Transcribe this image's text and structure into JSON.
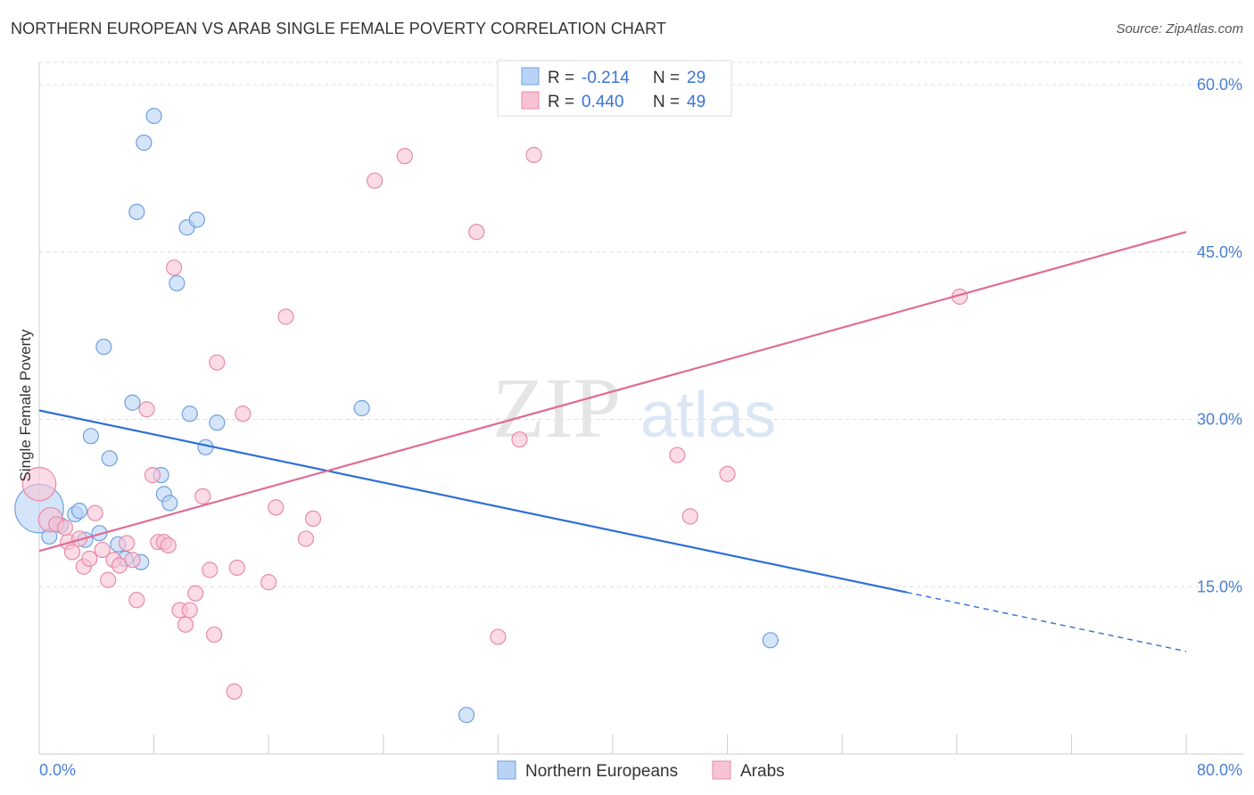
{
  "title": "NORTHERN EUROPEAN VS ARAB SINGLE FEMALE POVERTY CORRELATION CHART",
  "source": "Source: ZipAtlas.com",
  "watermark": {
    "zip": "ZIP",
    "atlas": "atlas"
  },
  "colors": {
    "blue_fill": "#b9d3f5",
    "blue_stroke": "#6f9fe0",
    "blue_line": "#2f6fd6",
    "pink_fill": "#f8c3d4",
    "pink_stroke": "#e88aa8",
    "pink_line": "#e06c95",
    "grid": "#dddddd",
    "tick_text": "#4a7fd4"
  },
  "legend_top": [
    {
      "label_r": "R = ",
      "r_value": "-0.214",
      "label_n": "N = ",
      "n_value": "29"
    },
    {
      "label_r": "R = ",
      "r_value": "0.440",
      "label_n": "N = ",
      "n_value": "49"
    }
  ],
  "chart_data": {
    "type": "scatter",
    "title": "NORTHERN EUROPEAN VS ARAB SINGLE FEMALE POVERTY CORRELATION CHART",
    "xlabel": "",
    "ylabel": "Single Female Poverty",
    "xlim": [
      0,
      80
    ],
    "ylim": [
      0,
      62
    ],
    "x_tick_labels": [
      "0.0%",
      "80.0%"
    ],
    "y_ticks": [
      15,
      30,
      45,
      60
    ],
    "y_tick_labels": [
      "15.0%",
      "30.0%",
      "45.0%",
      "60.0%"
    ],
    "grid": true,
    "legend_position": "bottom-center",
    "series": [
      {
        "name": "Northern Europeans",
        "r": -0.214,
        "n": 29,
        "trend": {
          "x0": 0,
          "y0": 30.8,
          "x1": 60.5,
          "y1": 14.5,
          "x_dash_end": 80,
          "y_dash_end": 9.2
        },
        "points": [
          [
            0.0,
            22.0,
            3.2
          ],
          [
            0.7,
            19.5,
            1
          ],
          [
            1.5,
            20.5,
            1
          ],
          [
            2.5,
            21.5,
            1
          ],
          [
            2.8,
            21.8,
            1
          ],
          [
            3.2,
            19.2,
            1
          ],
          [
            3.6,
            28.5,
            1
          ],
          [
            4.2,
            19.8,
            1
          ],
          [
            4.5,
            36.5,
            1
          ],
          [
            4.9,
            26.5,
            1
          ],
          [
            5.5,
            18.8,
            1
          ],
          [
            6.0,
            17.5,
            1
          ],
          [
            6.5,
            31.5,
            1
          ],
          [
            6.8,
            48.6,
            1
          ],
          [
            7.3,
            54.8,
            1
          ],
          [
            8.0,
            57.2,
            1
          ],
          [
            8.5,
            25.0,
            1
          ],
          [
            8.7,
            23.3,
            1
          ],
          [
            9.1,
            22.5,
            1
          ],
          [
            9.6,
            42.2,
            1
          ],
          [
            10.3,
            47.2,
            1
          ],
          [
            10.5,
            30.5,
            1
          ],
          [
            11.0,
            47.9,
            1
          ],
          [
            11.6,
            27.5,
            1
          ],
          [
            12.4,
            29.7,
            1
          ],
          [
            22.5,
            31.0,
            1
          ],
          [
            29.8,
            3.5,
            1
          ],
          [
            51.0,
            10.2,
            1
          ],
          [
            7.1,
            17.2,
            1
          ]
        ]
      },
      {
        "name": "Arabs",
        "r": 0.44,
        "n": 49,
        "trend": {
          "x0": 0,
          "y0": 18.2,
          "x1": 80,
          "y1": 46.8
        },
        "points": [
          [
            0.0,
            24.2,
            2.2
          ],
          [
            0.8,
            21.0,
            1.6
          ],
          [
            1.2,
            20.6,
            1
          ],
          [
            1.8,
            20.3,
            1
          ],
          [
            2.0,
            19.0,
            1
          ],
          [
            2.3,
            18.1,
            1
          ],
          [
            2.8,
            19.3,
            1
          ],
          [
            3.1,
            16.8,
            1
          ],
          [
            3.5,
            17.5,
            1
          ],
          [
            3.9,
            21.6,
            1
          ],
          [
            4.4,
            18.3,
            1
          ],
          [
            4.8,
            15.6,
            1
          ],
          [
            5.2,
            17.4,
            1
          ],
          [
            5.6,
            16.9,
            1
          ],
          [
            6.1,
            18.9,
            1
          ],
          [
            6.5,
            17.4,
            1
          ],
          [
            6.8,
            13.8,
            1
          ],
          [
            7.5,
            30.9,
            1
          ],
          [
            7.9,
            25.0,
            1
          ],
          [
            8.3,
            19.0,
            1
          ],
          [
            8.7,
            19.0,
            1
          ],
          [
            9.0,
            18.7,
            1
          ],
          [
            9.4,
            43.6,
            1
          ],
          [
            9.8,
            12.9,
            1
          ],
          [
            10.2,
            11.6,
            1
          ],
          [
            10.5,
            12.9,
            1
          ],
          [
            10.9,
            14.4,
            1
          ],
          [
            11.4,
            23.1,
            1
          ],
          [
            11.9,
            16.5,
            1
          ],
          [
            12.4,
            35.1,
            1
          ],
          [
            12.2,
            10.7,
            1
          ],
          [
            13.6,
            5.6,
            1
          ],
          [
            13.8,
            16.7,
            1
          ],
          [
            14.2,
            30.5,
            1
          ],
          [
            16.0,
            15.4,
            1
          ],
          [
            16.5,
            22.1,
            1
          ],
          [
            17.2,
            39.2,
            1
          ],
          [
            18.6,
            19.3,
            1
          ],
          [
            19.1,
            21.1,
            1
          ],
          [
            23.4,
            51.4,
            1
          ],
          [
            25.5,
            53.6,
            1
          ],
          [
            30.5,
            46.8,
            1
          ],
          [
            32.0,
            10.5,
            1
          ],
          [
            33.5,
            28.2,
            1
          ],
          [
            34.5,
            53.7,
            1
          ],
          [
            44.5,
            26.8,
            1
          ],
          [
            45.4,
            21.3,
            1
          ],
          [
            48.0,
            25.1,
            1
          ],
          [
            64.2,
            41.0,
            1
          ]
        ]
      }
    ]
  }
}
